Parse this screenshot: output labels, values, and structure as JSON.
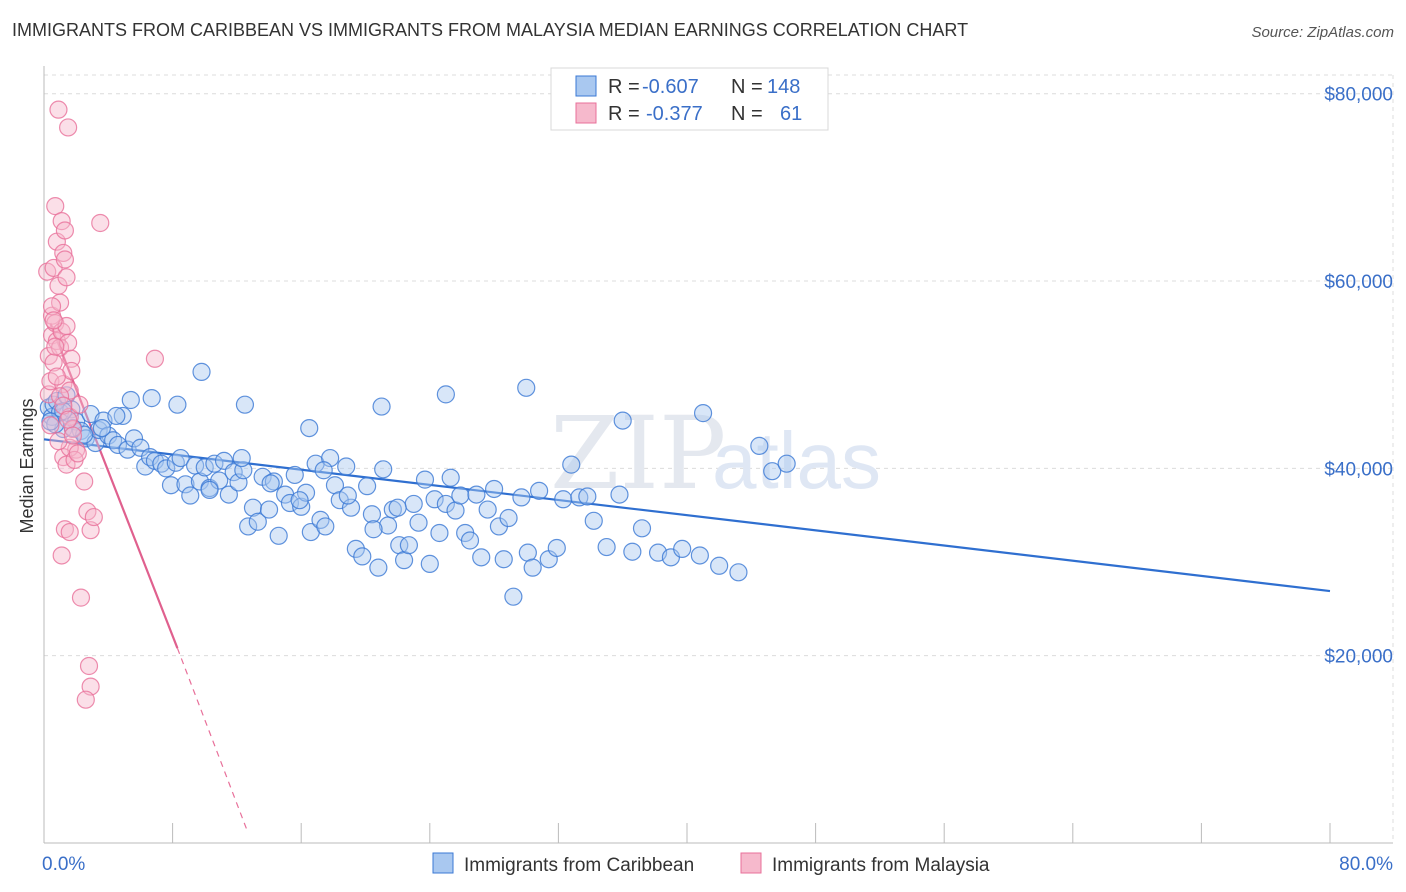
{
  "title": "IMMIGRANTS FROM CARIBBEAN VS IMMIGRANTS FROM MALAYSIA MEDIAN EARNINGS CORRELATION CHART",
  "source": "Source: ZipAtlas.com",
  "watermark": {
    "zip": "ZIP",
    "atlas": "atlas"
  },
  "colors": {
    "blue": "#3a78d4",
    "blue_fill": "#a9c8f0",
    "pink": "#e8709a",
    "pink_fill": "#f6b9cc",
    "tick_text": "#3a6fc8"
  },
  "legend": {
    "rows": [
      {
        "r_label": "R =",
        "r_value": "-0.607",
        "n_label": "N =",
        "n_value": "148"
      },
      {
        "r_label": "R =",
        "r_value": "-0.377",
        "n_label": "N =",
        "n_value": "61"
      }
    ]
  },
  "bottom_legend": {
    "caribbean": "Immigrants from Caribbean",
    "malaysia": "Immigrants from Malaysia"
  },
  "chart_data": {
    "type": "scatter",
    "title": "IMMIGRANTS FROM CARIBBEAN VS IMMIGRANTS FROM MALAYSIA MEDIAN EARNINGS CORRELATION CHART",
    "xlabel": "",
    "ylabel": "Median Earnings",
    "xlim": [
      0,
      80
    ],
    "ylim": [
      0,
      82000
    ],
    "x_tick_labels": [
      "0.0%",
      "80.0%"
    ],
    "y_ticks": [
      20000,
      40000,
      60000,
      80000
    ],
    "y_tick_labels": [
      "$20,000",
      "$40,000",
      "$60,000",
      "$80,000"
    ],
    "grid": true,
    "legend_position": "top-center",
    "series": [
      {
        "name": "Immigrants from Caribbean",
        "color": "#3a78d4",
        "trend": {
          "x": [
            0.0,
            80.0
          ],
          "y": [
            43100,
            26900
          ]
        },
        "points": [
          [
            0.3,
            46500
          ],
          [
            0.5,
            45500
          ],
          [
            0.6,
            46800
          ],
          [
            0.8,
            47200
          ],
          [
            1.0,
            46000
          ],
          [
            1.2,
            44200
          ],
          [
            1.4,
            47800
          ],
          [
            1.7,
            46300
          ],
          [
            2.0,
            45000
          ],
          [
            2.3,
            44000
          ],
          [
            2.6,
            43200
          ],
          [
            2.9,
            45800
          ],
          [
            3.2,
            42700
          ],
          [
            3.4,
            44100
          ],
          [
            3.7,
            45100
          ],
          [
            4.0,
            43500
          ],
          [
            4.3,
            43000
          ],
          [
            4.6,
            42500
          ],
          [
            4.9,
            45600
          ],
          [
            5.2,
            42000
          ],
          [
            5.6,
            43200
          ],
          [
            6.0,
            42200
          ],
          [
            6.3,
            40200
          ],
          [
            6.6,
            41200
          ],
          [
            6.9,
            40800
          ],
          [
            7.3,
            40500
          ],
          [
            7.6,
            40000
          ],
          [
            7.9,
            38200
          ],
          [
            8.2,
            40600
          ],
          [
            8.5,
            41100
          ],
          [
            8.8,
            38300
          ],
          [
            9.1,
            37100
          ],
          [
            9.4,
            40300
          ],
          [
            9.7,
            38600
          ],
          [
            10.0,
            40100
          ],
          [
            10.3,
            37900
          ],
          [
            10.6,
            40500
          ],
          [
            10.9,
            38700
          ],
          [
            11.2,
            40800
          ],
          [
            11.5,
            37200
          ],
          [
            11.8,
            39600
          ],
          [
            12.1,
            38500
          ],
          [
            12.4,
            39800
          ],
          [
            12.7,
            33800
          ],
          [
            13.0,
            35800
          ],
          [
            13.3,
            34300
          ],
          [
            13.6,
            39100
          ],
          [
            14.0,
            35600
          ],
          [
            14.3,
            38600
          ],
          [
            14.6,
            32800
          ],
          [
            15.0,
            37200
          ],
          [
            15.3,
            36300
          ],
          [
            15.6,
            39300
          ],
          [
            16.0,
            35900
          ],
          [
            16.3,
            37400
          ],
          [
            16.6,
            33200
          ],
          [
            16.9,
            40500
          ],
          [
            17.2,
            34500
          ],
          [
            17.5,
            33800
          ],
          [
            17.8,
            41100
          ],
          [
            18.1,
            38200
          ],
          [
            18.4,
            36600
          ],
          [
            18.8,
            40200
          ],
          [
            19.1,
            35800
          ],
          [
            19.4,
            31400
          ],
          [
            19.8,
            30600
          ],
          [
            20.1,
            38100
          ],
          [
            20.4,
            35100
          ],
          [
            20.8,
            29400
          ],
          [
            21.1,
            39900
          ],
          [
            21.4,
            33900
          ],
          [
            21.7,
            35600
          ],
          [
            22.1,
            31800
          ],
          [
            22.4,
            30200
          ],
          [
            22.7,
            31800
          ],
          [
            23.0,
            36200
          ],
          [
            23.3,
            34200
          ],
          [
            23.7,
            38800
          ],
          [
            24.0,
            29800
          ],
          [
            24.3,
            36700
          ],
          [
            24.6,
            33100
          ],
          [
            25.0,
            36200
          ],
          [
            25.3,
            39000
          ],
          [
            25.6,
            35500
          ],
          [
            25.9,
            37100
          ],
          [
            26.2,
            33100
          ],
          [
            26.5,
            32300
          ],
          [
            26.9,
            37200
          ],
          [
            27.2,
            30500
          ],
          [
            27.6,
            35600
          ],
          [
            28.0,
            37800
          ],
          [
            28.3,
            33800
          ],
          [
            28.6,
            30300
          ],
          [
            28.9,
            34700
          ],
          [
            29.2,
            26300
          ],
          [
            29.7,
            36900
          ],
          [
            30.1,
            31000
          ],
          [
            30.4,
            29400
          ],
          [
            30.8,
            37600
          ],
          [
            31.4,
            30300
          ],
          [
            31.9,
            31500
          ],
          [
            32.3,
            36700
          ],
          [
            32.8,
            40400
          ],
          [
            33.3,
            36900
          ],
          [
            33.8,
            37000
          ],
          [
            34.2,
            34400
          ],
          [
            35.0,
            31600
          ],
          [
            35.8,
            37200
          ],
          [
            36.6,
            31100
          ],
          [
            37.2,
            33600
          ],
          [
            38.2,
            31000
          ],
          [
            39.0,
            30500
          ],
          [
            39.7,
            31400
          ],
          [
            40.8,
            30700
          ],
          [
            42.0,
            29600
          ],
          [
            43.2,
            28900
          ],
          [
            44.5,
            42400
          ],
          [
            45.3,
            39700
          ],
          [
            46.2,
            40500
          ],
          [
            41.0,
            45900
          ],
          [
            36.0,
            45100
          ],
          [
            30.0,
            48600
          ],
          [
            25.0,
            47900
          ],
          [
            21.0,
            46600
          ],
          [
            16.5,
            44300
          ],
          [
            12.5,
            46800
          ],
          [
            9.8,
            50300
          ],
          [
            8.3,
            46800
          ],
          [
            6.7,
            47500
          ],
          [
            5.4,
            47300
          ],
          [
            4.5,
            45600
          ],
          [
            3.6,
            44300
          ],
          [
            2.5,
            43600
          ],
          [
            1.8,
            44300
          ],
          [
            1.2,
            46100
          ],
          [
            0.7,
            44700
          ],
          [
            0.4,
            45000
          ],
          [
            10.3,
            37700
          ],
          [
            12.3,
            41100
          ],
          [
            14.1,
            38400
          ],
          [
            15.9,
            36600
          ],
          [
            17.4,
            39800
          ],
          [
            18.9,
            37100
          ],
          [
            20.5,
            33500
          ],
          [
            22.0,
            35800
          ]
        ]
      },
      {
        "name": "Immigrants from Malaysia",
        "color": "#e8709a",
        "trend": {
          "x": [
            0.4,
            8.3
          ],
          "y": [
            55500,
            20800
          ]
        },
        "trend_extension": {
          "x": [
            8.3,
            12.6
          ],
          "y": [
            20800,
            1500
          ]
        },
        "points": [
          [
            0.2,
            61000
          ],
          [
            0.3,
            52000
          ],
          [
            0.3,
            47900
          ],
          [
            0.4,
            44600
          ],
          [
            0.4,
            49300
          ],
          [
            0.5,
            56300
          ],
          [
            0.5,
            54200
          ],
          [
            0.6,
            61400
          ],
          [
            0.6,
            51300
          ],
          [
            0.7,
            68000
          ],
          [
            0.7,
            55500
          ],
          [
            0.8,
            64200
          ],
          [
            0.8,
            53600
          ],
          [
            0.9,
            78300
          ],
          [
            0.9,
            59500
          ],
          [
            1.0,
            57700
          ],
          [
            1.0,
            52900
          ],
          [
            1.1,
            66400
          ],
          [
            1.1,
            54600
          ],
          [
            1.2,
            63000
          ],
          [
            1.2,
            49000
          ],
          [
            1.3,
            65400
          ],
          [
            1.3,
            62300
          ],
          [
            1.4,
            60400
          ],
          [
            1.4,
            55200
          ],
          [
            1.5,
            53400
          ],
          [
            1.5,
            76400
          ],
          [
            1.6,
            48300
          ],
          [
            1.6,
            45500
          ],
          [
            1.7,
            51700
          ],
          [
            1.7,
            50400
          ],
          [
            1.8,
            44200
          ],
          [
            2.0,
            42000
          ],
          [
            2.2,
            46800
          ],
          [
            2.5,
            38600
          ],
          [
            2.7,
            35400
          ],
          [
            2.9,
            33400
          ],
          [
            3.1,
            34800
          ],
          [
            3.5,
            66200
          ],
          [
            6.9,
            51700
          ],
          [
            1.2,
            41200
          ],
          [
            1.4,
            40400
          ],
          [
            1.6,
            42200
          ],
          [
            1.9,
            40900
          ],
          [
            0.9,
            42900
          ],
          [
            1.1,
            30700
          ],
          [
            1.3,
            33500
          ],
          [
            1.6,
            33200
          ],
          [
            2.3,
            26200
          ],
          [
            2.8,
            18900
          ],
          [
            2.9,
            16700
          ],
          [
            2.6,
            15300
          ],
          [
            0.5,
            57300
          ],
          [
            0.6,
            55800
          ],
          [
            0.7,
            53000
          ],
          [
            0.8,
            49800
          ],
          [
            1.0,
            47700
          ],
          [
            1.2,
            46700
          ],
          [
            1.5,
            45200
          ],
          [
            1.8,
            43500
          ],
          [
            2.1,
            41600
          ]
        ]
      }
    ]
  }
}
